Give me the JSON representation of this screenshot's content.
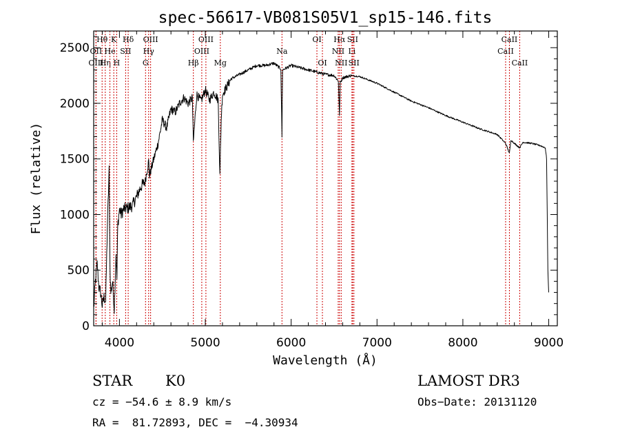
{
  "chart_data": {
    "type": "line",
    "title": "spec-56617-VB081S05V1_sp15-146.fits",
    "xlabel": "Wavelength (Å)",
    "ylabel": "Flux (relative)",
    "xlim": [
      3700,
      9100
    ],
    "ylim": [
      0,
      2650
    ],
    "xticks": [
      4000,
      5000,
      6000,
      7000,
      8000,
      9000
    ],
    "yticks": [
      0,
      500,
      1000,
      1500,
      2000,
      2500
    ],
    "x_minor_step": 200,
    "y_minor_step": 100,
    "series": [
      {
        "name": "flux",
        "color": "#000000",
        "x": [
          3700,
          3720,
          3740,
          3760,
          3780,
          3800,
          3820,
          3840,
          3860,
          3880,
          3890,
          3900,
          3920,
          3940,
          3960,
          3970,
          3980,
          4000,
          4020,
          4050,
          4100,
          4150,
          4200,
          4250,
          4300,
          4340,
          4350,
          4400,
          4450,
          4500,
          4550,
          4600,
          4650,
          4700,
          4750,
          4800,
          4850,
          4860,
          4900,
          4950,
          5000,
          5050,
          5100,
          5150,
          5170,
          5185,
          5200,
          5250,
          5300,
          5400,
          5500,
          5600,
          5700,
          5800,
          5880,
          5893,
          5900,
          5950,
          6000,
          6100,
          6200,
          6300,
          6400,
          6500,
          6550,
          6563,
          6570,
          6600,
          6700,
          6800,
          6900,
          7000,
          7200,
          7400,
          7600,
          7800,
          8000,
          8200,
          8400,
          8498,
          8542,
          8560,
          8600,
          8662,
          8700,
          8800,
          8900,
          8960,
          8975,
          8990,
          9000
        ],
        "y": [
          150,
          400,
          560,
          350,
          300,
          180,
          260,
          220,
          900,
          1400,
          500,
          300,
          400,
          150,
          650,
          420,
          900,
          1050,
          1000,
          1050,
          1060,
          1080,
          1160,
          1250,
          1300,
          1480,
          1350,
          1500,
          1640,
          1850,
          1780,
          1950,
          1920,
          2000,
          2050,
          2000,
          2050,
          1650,
          2080,
          2020,
          2120,
          2030,
          2100,
          2030,
          1350,
          1850,
          2080,
          2150,
          2220,
          2260,
          2300,
          2340,
          2340,
          2360,
          2310,
          1700,
          2300,
          2320,
          2340,
          2320,
          2300,
          2280,
          2260,
          2250,
          2200,
          1880,
          2180,
          2230,
          2250,
          2240,
          2210,
          2180,
          2100,
          2020,
          1960,
          1890,
          1830,
          1770,
          1720,
          1640,
          1550,
          1670,
          1640,
          1600,
          1650,
          1640,
          1620,
          1600,
          1500,
          500,
          300
        ]
      }
    ],
    "lines": [
      {
        "name": "Hθ",
        "wl": 3798,
        "row": 1
      },
      {
        "name": "OII",
        "wl": 3727,
        "row": 2
      },
      {
        "name": "OIII",
        "wl": 3727,
        "row": 3
      },
      {
        "name": "Hη",
        "wl": 3835,
        "row": 3
      },
      {
        "name": "He",
        "wl": 3889,
        "row": 2
      },
      {
        "name": "K",
        "wl": 3934,
        "row": 1
      },
      {
        "name": "H",
        "wl": 3968,
        "row": 3
      },
      {
        "name": "SII",
        "wl": 4072,
        "row": 2
      },
      {
        "name": "Hδ",
        "wl": 4102,
        "row": 1
      },
      {
        "name": "G",
        "wl": 4304,
        "row": 3
      },
      {
        "name": "Hγ",
        "wl": 4340,
        "row": 2
      },
      {
        "name": "OIII",
        "wl": 4363,
        "row": 1
      },
      {
        "name": "Hβ",
        "wl": 4861,
        "row": 3
      },
      {
        "name": "OIII",
        "wl": 4959,
        "row": 2
      },
      {
        "name": "OIII",
        "wl": 5007,
        "row": 1
      },
      {
        "name": "Mg",
        "wl": 5175,
        "row": 3
      },
      {
        "name": "Na",
        "wl": 5893,
        "row": 2
      },
      {
        "name": "OI",
        "wl": 6300,
        "row": 1
      },
      {
        "name": "OI",
        "wl": 6364,
        "row": 3
      },
      {
        "name": "NII",
        "wl": 6548,
        "row": 2
      },
      {
        "name": "Hα",
        "wl": 6563,
        "row": 1
      },
      {
        "name": "NII",
        "wl": 6583,
        "row": 3
      },
      {
        "name": "Li",
        "wl": 6708,
        "row": 2
      },
      {
        "name": "SII",
        "wl": 6716,
        "row": 1
      },
      {
        "name": "SII",
        "wl": 6731,
        "row": 3
      },
      {
        "name": "CaII",
        "wl": 8498,
        "row": 2
      },
      {
        "name": "CaII",
        "wl": 8542,
        "row": 1
      },
      {
        "name": "CaII",
        "wl": 8662,
        "row": 3
      }
    ],
    "line_color": "#cc0000"
  },
  "info": {
    "class": "STAR",
    "subclass": "K0",
    "survey": "LAMOST DR3",
    "cz": "cz = −54.6 ± 8.9 km/s",
    "obs_date": "Obs−Date: 20131120",
    "radec": "RA =  81.72893, DEC =  −4.30934"
  }
}
